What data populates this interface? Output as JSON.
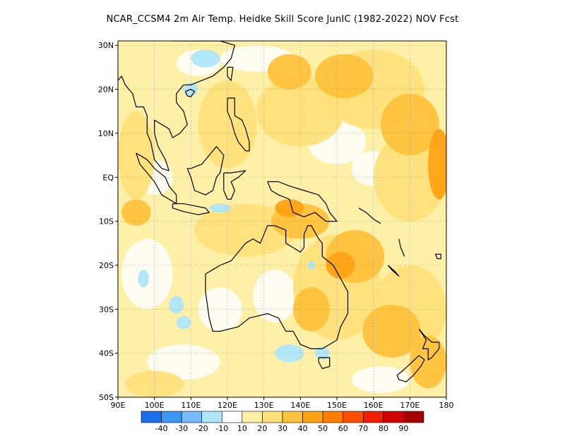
{
  "title": "NCAR_CCSM4  2m Air Temp. Heidke Skill Score JunIC (1982-2022) NOV Fcst",
  "map": {
    "lon_range": [
      90,
      180
    ],
    "lat_range": [
      -50,
      31
    ],
    "lon_ticks": [
      {
        "value": 90,
        "label": "90E"
      },
      {
        "value": 100,
        "label": "100E"
      },
      {
        "value": 110,
        "label": "110E"
      },
      {
        "value": 120,
        "label": "120E"
      },
      {
        "value": 130,
        "label": "130E"
      },
      {
        "value": 140,
        "label": "140E"
      },
      {
        "value": 150,
        "label": "150E"
      },
      {
        "value": 160,
        "label": "160E"
      },
      {
        "value": 170,
        "label": "170E"
      },
      {
        "value": 180,
        "label": "180"
      }
    ],
    "lat_ticks": [
      {
        "value": 30,
        "label": "30N"
      },
      {
        "value": 20,
        "label": "20N"
      },
      {
        "value": 10,
        "label": "10N"
      },
      {
        "value": 0,
        "label": "EQ"
      },
      {
        "value": -10,
        "label": "10S"
      },
      {
        "value": -20,
        "label": "20S"
      },
      {
        "value": -30,
        "label": "30S"
      },
      {
        "value": -40,
        "label": "40S"
      },
      {
        "value": -50,
        "label": "50S"
      }
    ],
    "gridlines": "dotted"
  },
  "colorbar": {
    "colors": [
      "#1e6eeb",
      "#3c96f5",
      "#78b9fa",
      "#afe6fa",
      "#ffffff",
      "#fff0a8",
      "#ffe07a",
      "#ffc23c",
      "#ffa214",
      "#ff7d00",
      "#ff4e00",
      "#f01e00",
      "#d20000",
      "#a50000"
    ],
    "labels": [
      "-40",
      "-30",
      "-20",
      "-10",
      "10",
      "20",
      "30",
      "40",
      "50",
      "60",
      "70",
      "80",
      "90"
    ]
  },
  "chart_data": {
    "type": "heatmap",
    "title": "NCAR_CCSM4  2m Air Temp. Heidke Skill Score JunIC (1982-2022) NOV Fcst",
    "xlabel": "",
    "ylabel": "",
    "xlim": [
      90,
      180
    ],
    "ylim": [
      -50,
      31
    ],
    "background_level": 10,
    "regions": [
      {
        "level": 10,
        "lon": 112,
        "lat": 26,
        "r_lon": 6,
        "r_lat": 3
      },
      {
        "level": 10,
        "lon": 128,
        "lat": 27,
        "r_lon": 10,
        "r_lat": 3
      },
      {
        "level": 10,
        "lon": 100,
        "lat": 0,
        "r_lon": 5,
        "r_lat": 4
      },
      {
        "level": 10,
        "lon": 150,
        "lat": 8,
        "r_lon": 8,
        "r_lat": 5
      },
      {
        "level": 10,
        "lon": 160,
        "lat": 2,
        "r_lon": 6,
        "r_lat": 4
      },
      {
        "level": 10,
        "lon": 98,
        "lat": -22,
        "r_lon": 7,
        "r_lat": 8
      },
      {
        "level": 10,
        "lon": 118,
        "lat": -30,
        "r_lon": 6,
        "r_lat": 5
      },
      {
        "level": 10,
        "lon": 133,
        "lat": -27,
        "r_lon": 6,
        "r_lat": 6
      },
      {
        "level": 10,
        "lon": 108,
        "lat": -42,
        "r_lon": 10,
        "r_lat": 4
      },
      {
        "level": 10,
        "lon": 162,
        "lat": -46,
        "r_lon": 8,
        "r_lat": 3
      },
      {
        "level": 20,
        "lon": 95,
        "lat": 5,
        "r_lon": 5,
        "r_lat": 10
      },
      {
        "level": 20,
        "lon": 120,
        "lat": 12,
        "r_lon": 8,
        "r_lat": 10
      },
      {
        "level": 20,
        "lon": 140,
        "lat": 15,
        "r_lon": 12,
        "r_lat": 8
      },
      {
        "level": 20,
        "lon": 160,
        "lat": 20,
        "r_lon": 14,
        "r_lat": 9
      },
      {
        "level": 20,
        "lon": 170,
        "lat": 0,
        "r_lon": 10,
        "r_lat": 10
      },
      {
        "level": 20,
        "lon": 125,
        "lat": -12,
        "r_lon": 14,
        "r_lat": 6
      },
      {
        "level": 20,
        "lon": 150,
        "lat": -25,
        "r_lon": 12,
        "r_lat": 12
      },
      {
        "level": 20,
        "lon": 170,
        "lat": -30,
        "r_lon": 10,
        "r_lat": 10
      },
      {
        "level": 20,
        "lon": 100,
        "lat": -47,
        "r_lon": 8,
        "r_lat": 3
      },
      {
        "level": 30,
        "lon": 137,
        "lat": 24,
        "r_lon": 6,
        "r_lat": 4
      },
      {
        "level": 30,
        "lon": 152,
        "lat": 23,
        "r_lon": 8,
        "r_lat": 5
      },
      {
        "level": 30,
        "lon": 170,
        "lat": 12,
        "r_lon": 8,
        "r_lat": 7
      },
      {
        "level": 30,
        "lon": 95,
        "lat": -8,
        "r_lon": 4,
        "r_lat": 3
      },
      {
        "level": 30,
        "lon": 140,
        "lat": -10,
        "r_lon": 8,
        "r_lat": 4
      },
      {
        "level": 30,
        "lon": 155,
        "lat": -18,
        "r_lon": 8,
        "r_lat": 6
      },
      {
        "level": 30,
        "lon": 143,
        "lat": -30,
        "r_lon": 5,
        "r_lat": 5
      },
      {
        "level": 30,
        "lon": 165,
        "lat": -35,
        "r_lon": 8,
        "r_lat": 6
      },
      {
        "level": 30,
        "lon": 175,
        "lat": -42,
        "r_lon": 5,
        "r_lat": 6
      },
      {
        "level": 40,
        "lon": 178,
        "lat": 3,
        "r_lon": 3,
        "r_lat": 8
      },
      {
        "level": 40,
        "lon": 137,
        "lat": -7,
        "r_lon": 4,
        "r_lat": 2
      },
      {
        "level": 40,
        "lon": 151,
        "lat": -20,
        "r_lon": 4,
        "r_lat": 3
      },
      {
        "level": -10,
        "lon": 114,
        "lat": 27,
        "r_lon": 4,
        "r_lat": 2
      },
      {
        "level": -10,
        "lon": 110,
        "lat": 20,
        "r_lon": 2,
        "r_lat": 1.5
      },
      {
        "level": -10,
        "lon": 97,
        "lat": -23,
        "r_lon": 1.5,
        "r_lat": 2
      },
      {
        "level": -10,
        "lon": 106,
        "lat": -29,
        "r_lon": 2,
        "r_lat": 2
      },
      {
        "level": -10,
        "lon": 108,
        "lat": -33,
        "r_lon": 2,
        "r_lat": 1.5
      },
      {
        "level": -10,
        "lon": 137,
        "lat": -40,
        "r_lon": 4,
        "r_lat": 2
      },
      {
        "level": -10,
        "lon": 146,
        "lat": -40,
        "r_lon": 2,
        "r_lat": 1.5
      },
      {
        "level": -10,
        "lon": 143,
        "lat": -20,
        "r_lon": 1,
        "r_lat": 1
      },
      {
        "level": -10,
        "lon": 118,
        "lat": -7,
        "r_lon": 3,
        "r_lat": 1
      }
    ]
  }
}
